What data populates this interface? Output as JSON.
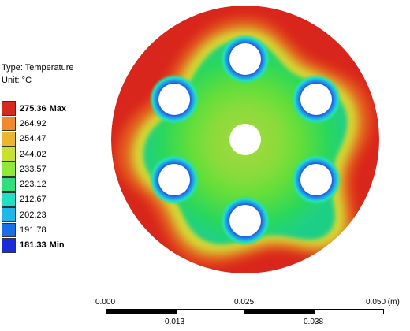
{
  "legend": {
    "type_label": "Type: Temperature",
    "unit_label": "Unit: °C",
    "entries": [
      {
        "value": "275.36",
        "tag": "Max",
        "color": "#d42a1f",
        "bold": true
      },
      {
        "value": "264.92",
        "color": "#f08a2a"
      },
      {
        "value": "254.47",
        "color": "#e9b62e"
      },
      {
        "value": "244.02",
        "color": "#c9e12f"
      },
      {
        "value": "233.57",
        "color": "#8fe83a"
      },
      {
        "value": "223.12",
        "color": "#2fe07a"
      },
      {
        "value": "212.67",
        "color": "#22e0c6"
      },
      {
        "value": "202.23",
        "color": "#1fb8e8"
      },
      {
        "value": "191.78",
        "color": "#1a6fe6"
      },
      {
        "value": "181.33",
        "tag": "Min",
        "color": "#1a2bd8",
        "bold": true
      }
    ]
  },
  "scale": {
    "top_labels": [
      "0.000",
      "0.025",
      "0.050 (m)"
    ],
    "bottom_labels": [
      "0.013",
      "0.038"
    ]
  },
  "colors": {
    "hot": "#d9261c",
    "warm": "#e36a22",
    "mid_green": "#4fd83a",
    "cool": "#1f37d6"
  }
}
